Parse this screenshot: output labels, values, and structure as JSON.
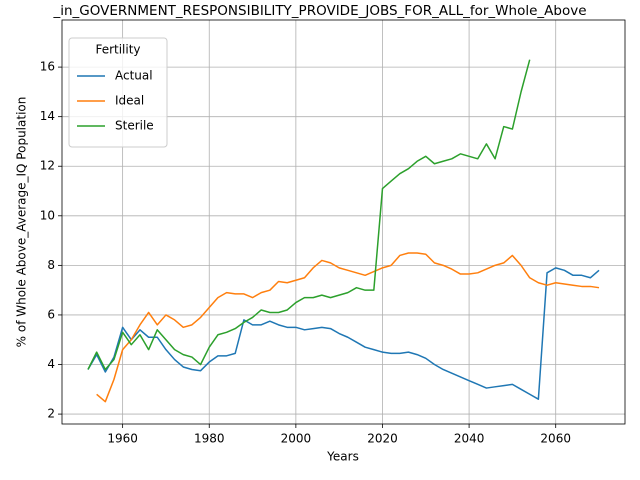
{
  "chart_data": {
    "type": "line",
    "title": "_in_GOVERNMENT_RESPONSIBILITY_PROVIDE_JOBS_FOR_ALL_for_Whole_Above",
    "xlabel": "Years",
    "ylabel": "% of Whole Above_Average_IQ Population",
    "legend_title": "Fertility",
    "legend": "upper left",
    "grid": true,
    "x": [
      1952,
      1954,
      1956,
      1958,
      1960,
      1962,
      1964,
      1966,
      1968,
      1970,
      1972,
      1974,
      1976,
      1978,
      1980,
      1982,
      1984,
      1986,
      1988,
      1990,
      1992,
      1994,
      1996,
      1998,
      2000,
      2002,
      2004,
      2006,
      2008,
      2010,
      2012,
      2014,
      2016,
      2018,
      2020,
      2022,
      2024,
      2026,
      2028,
      2030,
      2032,
      2034,
      2036,
      2038,
      2040,
      2042,
      2044,
      2046,
      2048,
      2050,
      2052,
      2054,
      2056,
      2058,
      2060,
      2062,
      2064,
      2066,
      2068,
      2070
    ],
    "series": [
      {
        "name": "Actual",
        "color": "#1f77b4",
        "values": [
          3.8,
          4.4,
          3.7,
          4.3,
          5.5,
          5.0,
          5.4,
          5.1,
          5.1,
          4.6,
          4.2,
          3.9,
          3.8,
          3.75,
          4.1,
          4.35,
          4.35,
          4.45,
          5.8,
          5.6,
          5.6,
          5.75,
          5.6,
          5.5,
          5.5,
          5.4,
          5.45,
          5.5,
          5.45,
          5.25,
          5.1,
          4.9,
          4.7,
          4.6,
          4.5,
          4.45,
          4.45,
          4.5,
          4.4,
          4.25,
          4.0,
          3.8,
          3.65,
          3.5,
          3.35,
          3.2,
          3.05,
          3.1,
          3.15,
          3.2,
          3.0,
          2.8,
          2.6,
          7.7,
          7.9,
          7.8,
          7.6,
          7.6,
          7.5,
          7.8
        ]
      },
      {
        "name": "Ideal",
        "color": "#ff7f0e",
        "values": [
          null,
          2.8,
          2.5,
          3.4,
          4.6,
          5.0,
          5.6,
          6.1,
          5.6,
          6.0,
          5.8,
          5.5,
          5.6,
          5.9,
          6.3,
          6.7,
          6.9,
          6.85,
          6.85,
          6.7,
          6.9,
          7.0,
          7.35,
          7.3,
          7.4,
          7.5,
          7.9,
          8.2,
          8.1,
          7.9,
          7.8,
          7.7,
          7.6,
          7.75,
          7.9,
          8.0,
          8.4,
          8.5,
          8.5,
          8.45,
          8.1,
          8.0,
          7.85,
          7.65,
          7.65,
          7.7,
          7.85,
          8.0,
          8.1,
          8.4,
          8.0,
          7.5,
          7.3,
          7.2,
          7.3,
          7.25,
          7.2,
          7.15,
          7.15,
          7.1
        ]
      },
      {
        "name": "Sterile",
        "color": "#2ca02c",
        "values": [
          3.8,
          4.5,
          3.8,
          4.2,
          5.3,
          4.8,
          5.2,
          4.6,
          5.4,
          5.0,
          4.6,
          4.4,
          4.3,
          4.0,
          4.7,
          5.2,
          5.3,
          5.45,
          5.7,
          5.9,
          6.2,
          6.1,
          6.1,
          6.2,
          6.5,
          6.7,
          6.7,
          6.8,
          6.7,
          6.8,
          6.9,
          7.1,
          7.0,
          7.0,
          11.1,
          11.4,
          11.7,
          11.9,
          12.2,
          12.4,
          12.1,
          12.2,
          12.3,
          12.5,
          12.4,
          12.3,
          12.9,
          12.3,
          13.6,
          13.5,
          15.0,
          16.3,
          null,
          null,
          null,
          null,
          null,
          null,
          null,
          null
        ]
      }
    ],
    "xlim": [
      1946,
      2076
    ],
    "ylim": [
      1.6,
      17.9
    ],
    "xticks": [
      1960,
      1980,
      2000,
      2020,
      2040,
      2060
    ],
    "yticks": [
      2,
      4,
      6,
      8,
      10,
      12,
      14,
      16
    ]
  }
}
